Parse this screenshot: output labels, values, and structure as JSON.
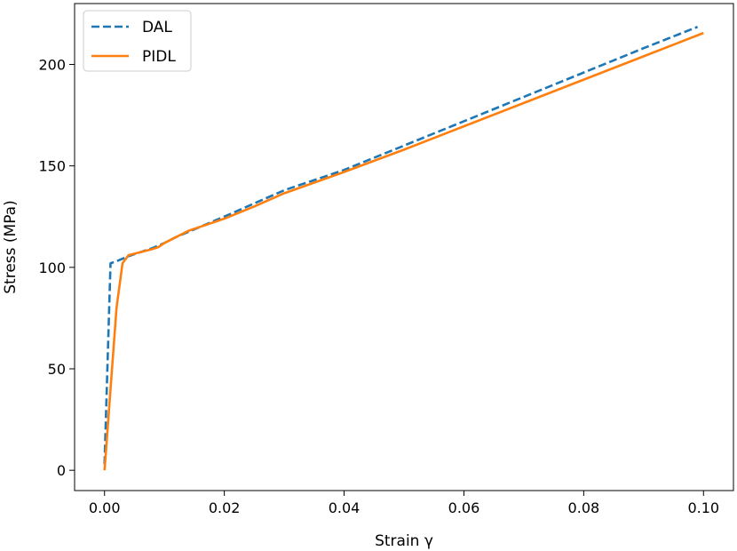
{
  "chart_data": {
    "type": "line",
    "title": "",
    "xlabel": "Strain γ",
    "ylabel": "Stress (MPa)",
    "xlim": [
      -0.005,
      0.105
    ],
    "ylim": [
      -10,
      230
    ],
    "xticks": [
      0.0,
      0.02,
      0.04,
      0.06,
      0.08,
      0.1
    ],
    "xtick_labels": [
      "0.00",
      "0.02",
      "0.04",
      "0.06",
      "0.08",
      "0.10"
    ],
    "yticks": [
      0,
      50,
      100,
      150,
      200
    ],
    "ytick_labels": [
      "0",
      "50",
      "100",
      "150",
      "200"
    ],
    "grid": false,
    "legend_position": "upper-left",
    "series": [
      {
        "name": "DAL",
        "style": "dashed",
        "color": "#1f77b4",
        "x": [
          0.0,
          0.001,
          0.002,
          0.004,
          0.006,
          0.008,
          0.01,
          0.012,
          0.014,
          0.016,
          0.02,
          0.03,
          0.04,
          0.05,
          0.06,
          0.07,
          0.08,
          0.09,
          0.099
        ],
        "y": [
          3,
          102,
          103,
          105.5,
          107.5,
          109.5,
          112,
          115,
          117.5,
          120,
          125,
          138,
          148,
          160,
          172,
          184,
          196,
          208,
          218.5
        ]
      },
      {
        "name": "PIDL",
        "style": "solid",
        "color": "#ff7f0e",
        "x": [
          0.0,
          0.001,
          0.002,
          0.003,
          0.004,
          0.006,
          0.008,
          0.009,
          0.01,
          0.012,
          0.014,
          0.016,
          0.02,
          0.025,
          0.03,
          0.04,
          0.05,
          0.06,
          0.07,
          0.08,
          0.09,
          0.1
        ],
        "y": [
          0,
          40,
          80,
          102,
          106,
          107.5,
          109,
          110,
          112,
          115,
          118,
          120,
          124,
          130,
          136.5,
          147,
          158,
          169.5,
          181,
          192.5,
          204,
          215.5
        ]
      }
    ]
  }
}
